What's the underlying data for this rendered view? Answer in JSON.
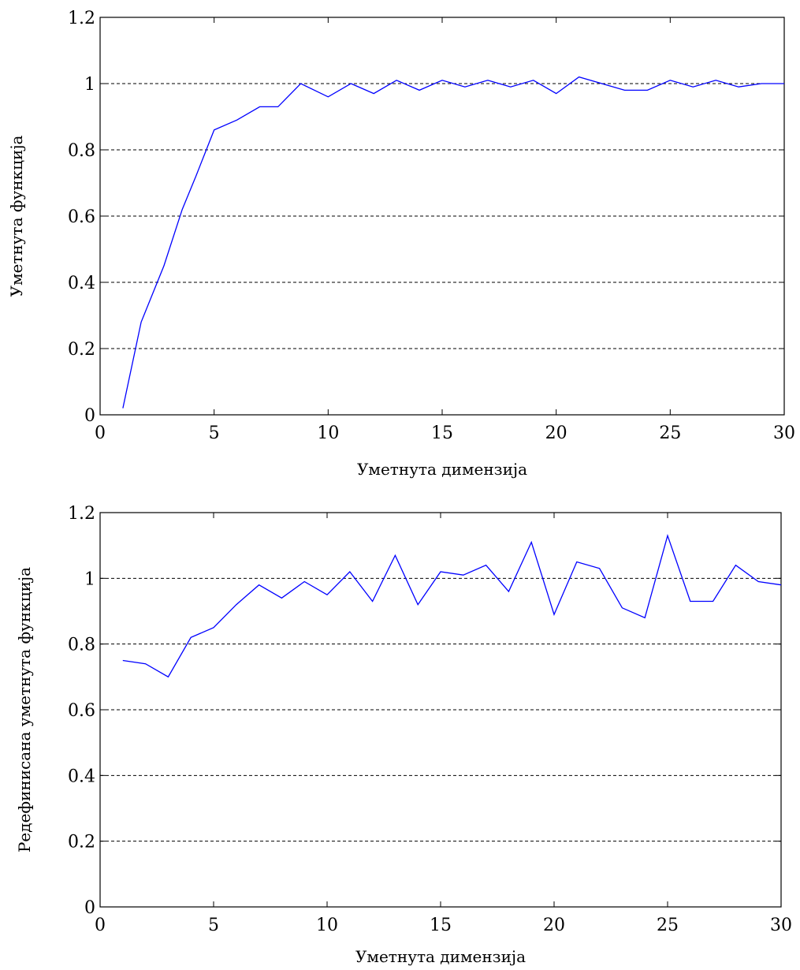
{
  "chart_data": [
    {
      "type": "line",
      "title": "",
      "xlabel": "Уметнута димензија",
      "ylabel": "Уметнута функција",
      "xlim": [
        0,
        30
      ],
      "ylim": [
        0,
        1.2
      ],
      "xticks": [
        "0",
        "5",
        "10",
        "15",
        "20",
        "25",
        "30"
      ],
      "yticks": [
        "0",
        "0.2",
        "0.4",
        "0.6",
        "0.8",
        "1",
        "1.2"
      ],
      "grid": "horizontal dashed",
      "series": [
        {
          "color": "#0000ff",
          "x": [
            1,
            1.8,
            2.8,
            3.6,
            4.2,
            5,
            6,
            7,
            7.8,
            8.8,
            10,
            11,
            12,
            13,
            14,
            15,
            16,
            17,
            18,
            19,
            20,
            21,
            22,
            23,
            24,
            25,
            26,
            27,
            28,
            29,
            30
          ],
          "y": [
            0.02,
            0.28,
            0.45,
            0.62,
            0.72,
            0.86,
            0.89,
            0.93,
            0.93,
            1.0,
            0.96,
            1.0,
            0.97,
            1.01,
            0.98,
            1.01,
            0.99,
            1.01,
            0.99,
            1.01,
            0.97,
            1.02,
            1.0,
            0.98,
            0.98,
            1.01,
            0.99,
            1.01,
            0.99,
            1.0,
            1.0
          ]
        }
      ]
    },
    {
      "type": "line",
      "title": "",
      "xlabel": "Уметнута димензија",
      "ylabel": "Редефинисана уметнута функција",
      "xlim": [
        0,
        30
      ],
      "ylim": [
        0,
        1.2
      ],
      "xticks": [
        "0",
        "5",
        "10",
        "15",
        "20",
        "25",
        "30"
      ],
      "yticks": [
        "0",
        "0.2",
        "0.4",
        "0.6",
        "0.8",
        "1",
        "1.2"
      ],
      "grid": "horizontal dashed",
      "series": [
        {
          "color": "#0000ff",
          "x": [
            1,
            2,
            3,
            4,
            5,
            6,
            7,
            8,
            9,
            10,
            11,
            12,
            13,
            14,
            15,
            16,
            17,
            18,
            19,
            20,
            21,
            22,
            23,
            24,
            25,
            26,
            27,
            28,
            29,
            30
          ],
          "y": [
            0.75,
            0.74,
            0.7,
            0.82,
            0.85,
            0.92,
            0.98,
            0.94,
            0.99,
            0.95,
            1.02,
            0.93,
            1.07,
            0.92,
            1.02,
            1.01,
            1.04,
            0.96,
            1.11,
            0.89,
            1.05,
            1.03,
            0.91,
            0.88,
            1.13,
            0.93,
            0.93,
            1.04,
            0.99,
            0.98
          ]
        }
      ]
    }
  ]
}
